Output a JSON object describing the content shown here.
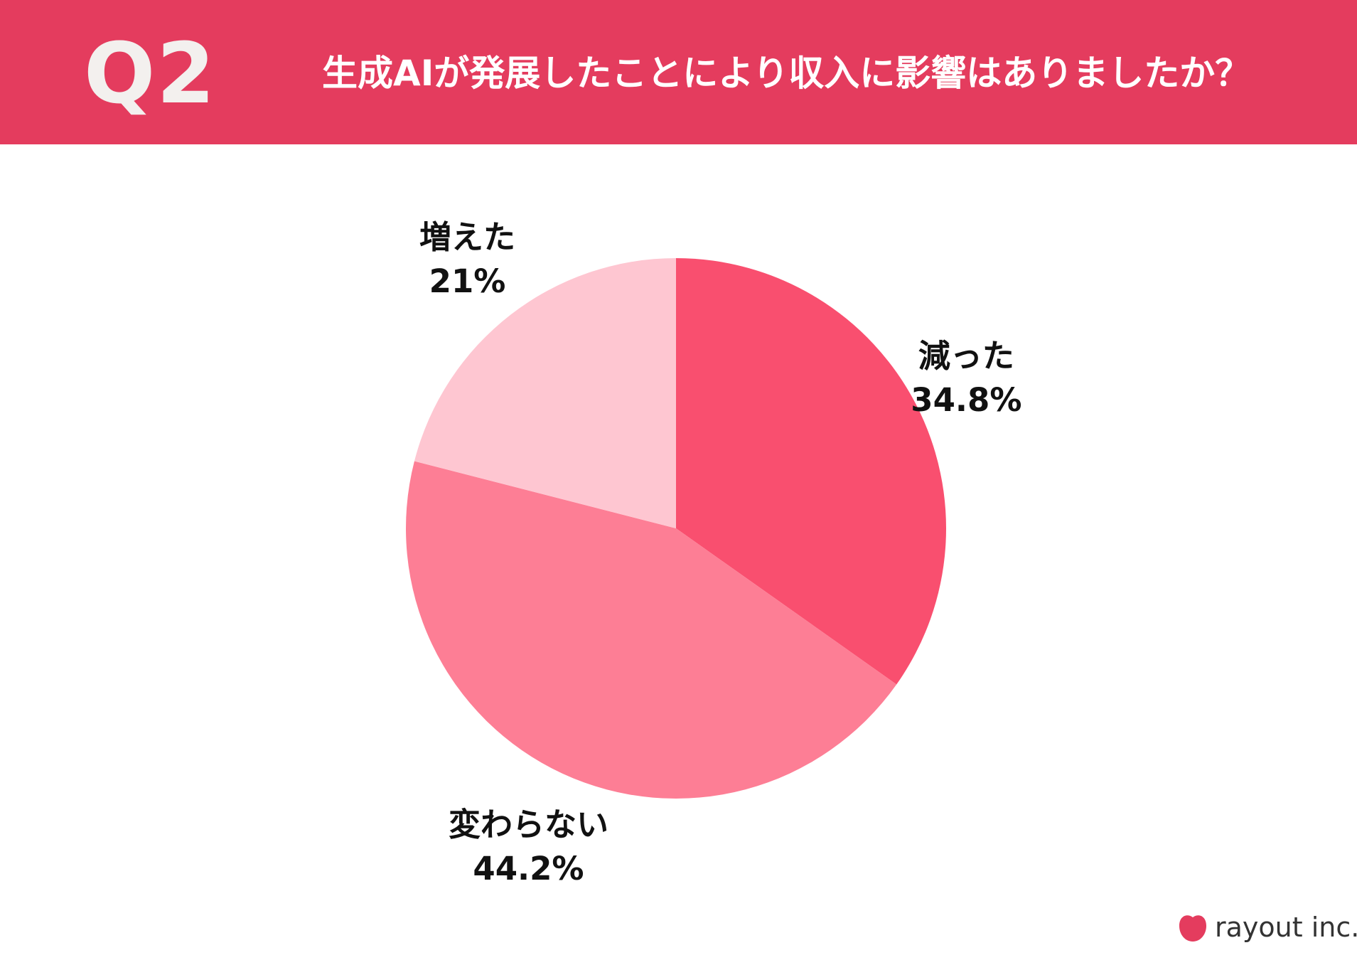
{
  "header": {
    "question_number": "Q2",
    "question_text": "生成AIが発展したことにより収入に影響はありましたか？"
  },
  "chart_data": {
    "type": "pie",
    "title": "生成AIが発展したことにより収入に影響はありましたか？",
    "slices": [
      {
        "label": "減った",
        "value": 34.8,
        "value_label": "34.8%",
        "color": "#f94f6f"
      },
      {
        "label": "変わらない",
        "value": 44.2,
        "value_label": "44.2%",
        "color": "#fd7e95"
      },
      {
        "label": "増えた",
        "value": 21,
        "value_label": "21%",
        "color": "#fec6d1"
      }
    ],
    "start_angle": "12 o'clock",
    "direction": "clockwise"
  },
  "colors": {
    "header_background": "#e43c5e",
    "question_number_text": "#f3f0ee",
    "header_text": "#ffffff",
    "label_text": "#111111",
    "brand_logo": "#e43c5e"
  },
  "brand": {
    "name": "rayout inc.",
    "logo_icon": "apple-icon"
  }
}
